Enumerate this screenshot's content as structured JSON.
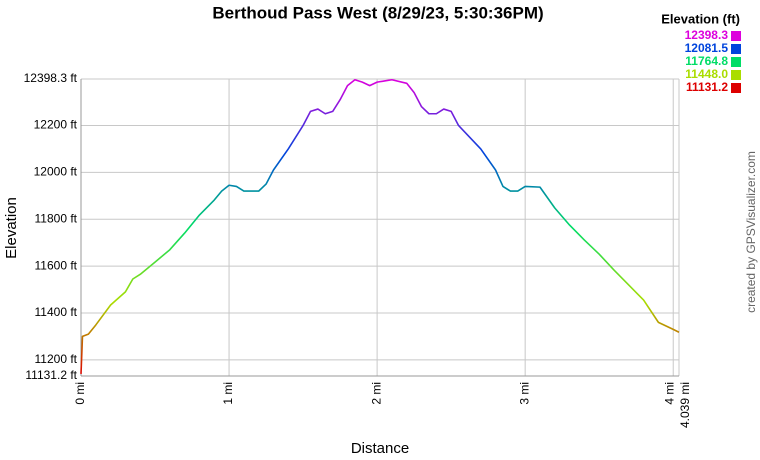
{
  "chart_data": {
    "type": "line",
    "title": "Berthoud Pass West (8/29/23, 5:30:36PM)",
    "x_label": "Distance",
    "y_label": "Elevation",
    "credit": "created by GPSVisualizer.com",
    "legend_title": "Elevation (ft)",
    "legend": [
      {
        "label": "12398.3",
        "value": 12398.3,
        "color": "#dd00dd"
      },
      {
        "label": "12081.5",
        "value": 12081.5,
        "color": "#0044dd"
      },
      {
        "label": "11764.8",
        "value": 11764.8,
        "color": "#00dd66"
      },
      {
        "label": "11448.0",
        "value": 11448.0,
        "color": "#aadd00"
      },
      {
        "label": "11131.2",
        "value": 11131.2,
        "color": "#dd0000"
      }
    ],
    "grid": true,
    "xlim": [
      0,
      4.039
    ],
    "xticks": [
      {
        "value": 0,
        "label": "0 mi"
      },
      {
        "value": 1,
        "label": "1 mi"
      },
      {
        "value": 2,
        "label": "2 mi"
      },
      {
        "value": 3,
        "label": "3 mi"
      },
      {
        "value": 4,
        "label": "4 mi"
      },
      {
        "value": 4.039,
        "label": "4.039 mi"
      }
    ],
    "ylim": [
      11131.2,
      12398.3
    ],
    "yticks": [
      {
        "value": 11131.2,
        "label": "11131.2 ft"
      },
      {
        "value": 11200,
        "label": "11200 ft"
      },
      {
        "value": 11400,
        "label": "11400 ft"
      },
      {
        "value": 11600,
        "label": "11600 ft"
      },
      {
        "value": 11800,
        "label": "11800 ft"
      },
      {
        "value": 12000,
        "label": "12000 ft"
      },
      {
        "value": 12200,
        "label": "12200 ft"
      },
      {
        "value": 12398.3,
        "label": "12398.3 ft"
      }
    ],
    "x": [
      0,
      0.01,
      0.05,
      0.1,
      0.2,
      0.3,
      0.35,
      0.4,
      0.5,
      0.6,
      0.7,
      0.8,
      0.9,
      0.95,
      1.0,
      1.05,
      1.1,
      1.2,
      1.25,
      1.3,
      1.4,
      1.5,
      1.55,
      1.6,
      1.65,
      1.7,
      1.75,
      1.8,
      1.85,
      1.9,
      1.95,
      2.0,
      2.05,
      2.1,
      2.2,
      2.25,
      2.3,
      2.35,
      2.4,
      2.45,
      2.5,
      2.55,
      2.7,
      2.8,
      2.85,
      2.9,
      2.95,
      3.0,
      3.1,
      3.2,
      3.3,
      3.4,
      3.5,
      3.6,
      3.7,
      3.8,
      3.9,
      4.0,
      4.039
    ],
    "values": [
      11140,
      11300,
      11310,
      11349,
      11434,
      11490,
      11545,
      11565,
      11617,
      11670,
      11741,
      11818,
      11882,
      11920,
      11945,
      11940,
      11920,
      11920,
      11950,
      12010,
      12100,
      12200,
      12260,
      12270,
      12250,
      12260,
      12310,
      12370,
      12395,
      12385,
      12370,
      12385,
      12390,
      12395,
      12380,
      12340,
      12280,
      12250,
      12250,
      12270,
      12260,
      12200,
      12100,
      12010,
      11940,
      11920,
      11920,
      11940,
      11937,
      11848,
      11775,
      11711,
      11651,
      11583,
      11519,
      11455,
      11360,
      11330,
      11318
    ]
  }
}
